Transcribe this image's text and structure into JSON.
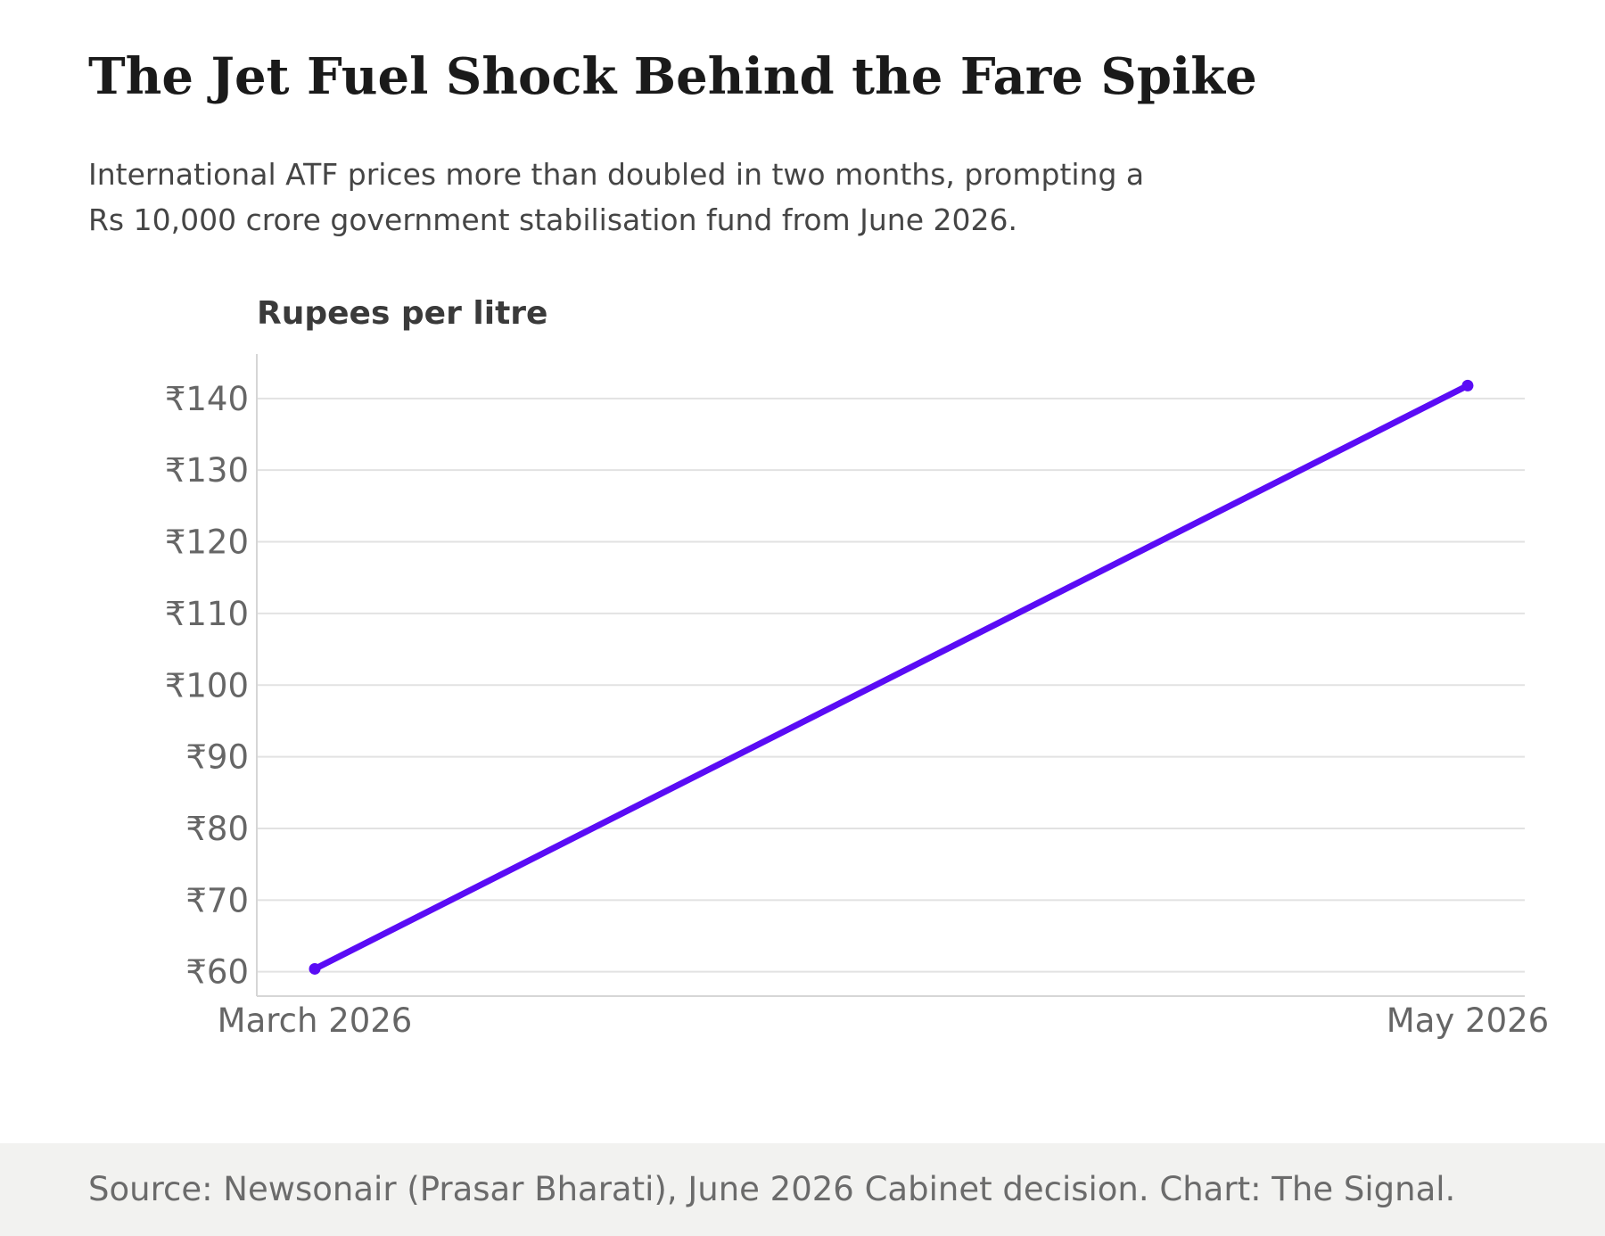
{
  "header": {
    "title": "The Jet Fuel Shock Behind the Fare Spike",
    "subtitle_lines": [
      "International ATF prices more than doubled in two months, prompting a",
      "Rs 10,000 crore government stabilisation fund from June 2026."
    ]
  },
  "chart_data": {
    "type": "line",
    "ylabel": "Rupees per litre",
    "xlabel": "",
    "categories": [
      "March 2026",
      "May 2026"
    ],
    "series": [
      {
        "values": [
          60.4,
          141.8
        ],
        "color": "#5a0cf5"
      }
    ],
    "yticks": [
      60,
      70,
      80,
      90,
      100,
      110,
      120,
      130,
      140
    ],
    "ytick_labels": [
      "₹60",
      "₹70",
      "₹80",
      "₹90",
      "₹100",
      "₹110",
      "₹120",
      "₹130",
      "₹140"
    ],
    "ylim": [
      56.6,
      146.2
    ],
    "grid": true,
    "legend": "none"
  },
  "footer": {
    "source": "Source: Newsonair (Prasar Bharati), June 2026 Cabinet decision. Chart: The Signal."
  },
  "colors": {
    "line": "#5a0cf5",
    "gridline": "#e2e2e2",
    "axis": "#d6d6d6",
    "tick_text": "#666666",
    "footer_bg": "#f2f2f0"
  }
}
